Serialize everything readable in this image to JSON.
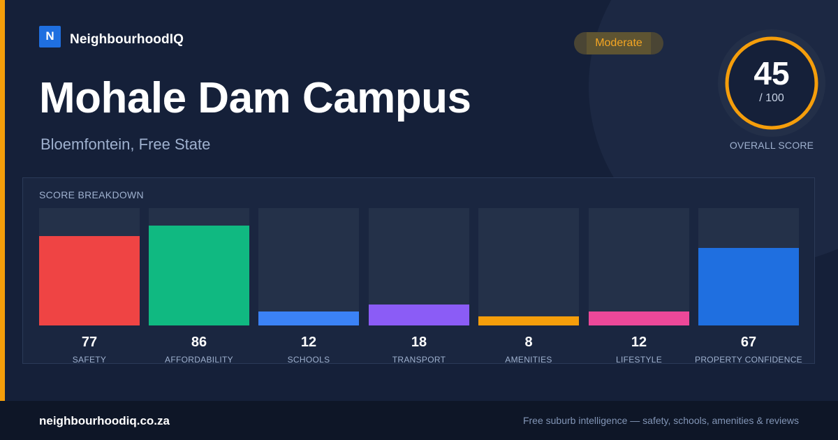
{
  "brand": {
    "logo_letter": "N",
    "name": "NeighbourhoodIQ"
  },
  "title": "Mohale Dam Campus",
  "subtitle": "Bloemfontein, Free State",
  "badge": {
    "label": "Moderate",
    "color": "#f5a623"
  },
  "overall": {
    "value": "45",
    "max": "/ 100",
    "label": "OVERALL SCORE",
    "fraction": 0.45,
    "ring_color": "#f59e0b"
  },
  "breakdown": {
    "title": "SCORE BREAKDOWN",
    "max": 100,
    "items": [
      {
        "label": "SAFETY",
        "value": "77",
        "score": 77,
        "color": "#ef4444"
      },
      {
        "label": "AFFORDABILITY",
        "value": "86",
        "score": 86,
        "color": "#10b981"
      },
      {
        "label": "SCHOOLS",
        "value": "12",
        "score": 12,
        "color": "#3b82f6"
      },
      {
        "label": "TRANSPORT",
        "value": "18",
        "score": 18,
        "color": "#8b5cf6"
      },
      {
        "label": "AMENITIES",
        "value": "8",
        "score": 8,
        "color": "#f59e0b"
      },
      {
        "label": "LIFESTYLE",
        "value": "12",
        "score": 12,
        "color": "#ec4899"
      },
      {
        "label": "PROPERTY CONFIDENCE",
        "value": "67",
        "score": 67,
        "color": "#1f6fe0"
      }
    ]
  },
  "footer": {
    "domain": "neighbourhoodiq.co.za",
    "tagline": "Free suburb intelligence — safety, schools, amenities & reviews"
  },
  "colors": {
    "background": "#152039",
    "accent": "#f59e0b",
    "brand": "#1f6fe0"
  }
}
